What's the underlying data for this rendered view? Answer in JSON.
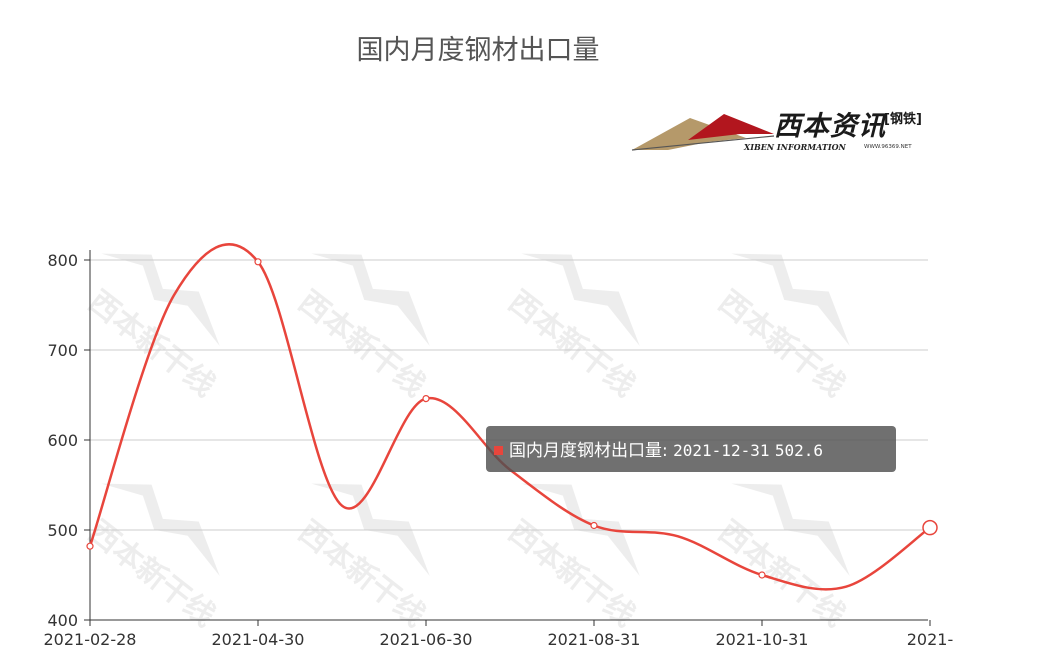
{
  "title": "国内月度钢材出口量",
  "logo": {
    "wordmark": "西本资讯",
    "badge": "[钢铁]",
    "subtitle": "XIBEN INFORMATION",
    "url": "WWW.96369.NET"
  },
  "watermark_text": "西本新干线",
  "tooltip": {
    "series_label": "国内月度钢材出口量",
    "separator": ":",
    "date": "2021-12-31",
    "value": "502.6"
  },
  "colors": {
    "line": "#e8453c",
    "axis": "#333333",
    "grid": "#cccccc",
    "tooltip_bg": "#505050"
  },
  "chart_data": {
    "type": "line",
    "title": "国内月度钢材出口量",
    "xlabel": "",
    "ylabel": "",
    "x": [
      "2021-02-28",
      "2021-03-31",
      "2021-04-30",
      "2021-05-31",
      "2021-06-30",
      "2021-07-31",
      "2021-08-31",
      "2021-09-30",
      "2021-10-31",
      "2021-11-30",
      "2021-12-31"
    ],
    "x_tick_labels": [
      "2021-02-28",
      "2021-04-30",
      "2021-06-30",
      "2021-08-31",
      "2021-10-31",
      "2021-"
    ],
    "ylim": [
      400,
      800
    ],
    "y_ticks": [
      400,
      500,
      600,
      700,
      800
    ],
    "grid": true,
    "series": [
      {
        "name": "国内月度钢材出口量",
        "values": [
          482,
          761,
          798,
          527,
          646,
          567,
          505,
          493,
          450,
          437,
          502.6
        ]
      }
    ]
  }
}
